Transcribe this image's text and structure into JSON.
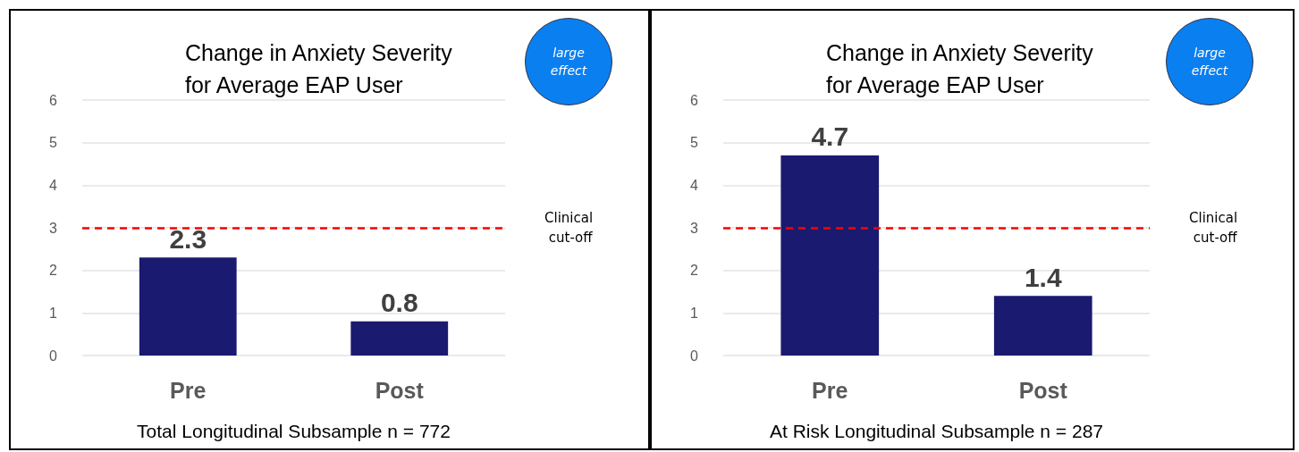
{
  "chart_data": [
    {
      "type": "bar",
      "title": "Change in Anxiety Severity for Average EAP User",
      "xlabel": "Total Longitudinal Subsample n = 772",
      "categories": [
        "Pre",
        "Post"
      ],
      "values": [
        2.3,
        0.8
      ],
      "color": "#1a1a70",
      "data_labels": true,
      "ylim": [
        0,
        6
      ],
      "yticks": [
        0,
        1,
        2,
        3,
        4,
        5,
        6
      ],
      "grid": "y",
      "ref_lines": [
        {
          "axis": "y",
          "value": 3,
          "label": "Clinical cut-off",
          "color": "#ff0000",
          "line_style": "dashed"
        }
      ],
      "annotations": [
        "large effect"
      ]
    },
    {
      "type": "bar",
      "title": "Change in Anxiety Severity for Average EAP User",
      "xlabel": "At Risk Longitudinal Subsample n = 287",
      "categories": [
        "Pre",
        "Post"
      ],
      "values": [
        4.7,
        1.4
      ],
      "color": "#1a1a70",
      "data_labels": true,
      "ylim": [
        0,
        6
      ],
      "yticks": [
        0,
        1,
        2,
        3,
        4,
        5,
        6
      ],
      "grid": "y",
      "ref_lines": [
        {
          "axis": "y",
          "value": 3,
          "label": "Clinical cut-off",
          "color": "#ff0000",
          "line_style": "dashed"
        }
      ],
      "annotations": [
        "large effect"
      ]
    }
  ]
}
